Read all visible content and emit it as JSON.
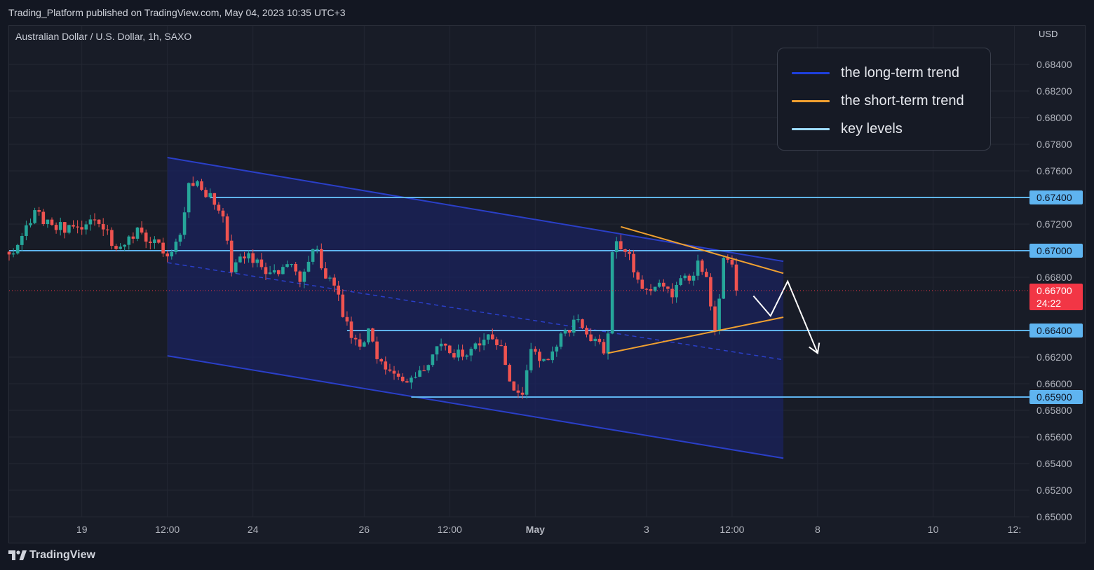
{
  "header": {
    "published": "Trading_Platform published on TradingView.com, May 04, 2023 10:35 UTC+3"
  },
  "symbol": "Australian Dollar / U.S. Dollar, 1h, SAXO",
  "currency": "USD",
  "footer": {
    "brand": "TradingView"
  },
  "legend": [
    {
      "label": "the long-term trend",
      "color": "#1e3fdc"
    },
    {
      "label": "the short-term trend",
      "color": "#f0a030"
    },
    {
      "label": "key levels",
      "color": "#9fdcff"
    }
  ],
  "colors": {
    "up": "#26a69a",
    "down": "#ef5350",
    "channel_line": "#2a3fc8",
    "channel_fill": "#1a2360",
    "short_trend": "#f0a030",
    "key_level": "#5fb4f0",
    "current_price": "#f23645"
  },
  "chart_data": {
    "type": "candlestick",
    "symbol": "Australian Dollar / U.S. Dollar",
    "interval": "1h",
    "exchange": "SAXO",
    "y_unit": "USD",
    "ylim": [
      0.65,
      0.685
    ],
    "y_ticks": [
      0.684,
      0.682,
      0.68,
      0.678,
      0.676,
      0.672,
      0.668,
      0.662,
      0.66,
      0.658,
      0.656,
      0.654,
      0.652,
      0.65
    ],
    "y_tick_labels": [
      "0.68400",
      "0.68200",
      "0.68000",
      "0.67800",
      "0.67600",
      "0.67200",
      "0.66800",
      "0.66200",
      "0.66000",
      "0.65800",
      "0.65600",
      "0.65400",
      "0.65200",
      "0.65000"
    ],
    "x_ticks": [
      {
        "label": "19",
        "bar": 17,
        "bold": false
      },
      {
        "label": "12:00",
        "bar": 37,
        "bold": false
      },
      {
        "label": "24",
        "bar": 57,
        "bold": false
      },
      {
        "label": "26",
        "bar": 83,
        "bold": false
      },
      {
        "label": "12:00",
        "bar": 103,
        "bold": false
      },
      {
        "label": "May",
        "bar": 123,
        "bold": true
      },
      {
        "label": "3",
        "bar": 149,
        "bold": false
      },
      {
        "label": "12:00",
        "bar": 169,
        "bold": false
      },
      {
        "label": "8",
        "bar": 189,
        "bold": false
      },
      {
        "label": "10",
        "bar": 216,
        "bold": false
      },
      {
        "label": "12:",
        "bar": 235,
        "bold": false
      }
    ],
    "candle_path": [
      [
        0,
        0.6696
      ],
      [
        6,
        0.6728
      ],
      [
        10,
        0.6721
      ],
      [
        15,
        0.6715
      ],
      [
        20,
        0.6723
      ],
      [
        25,
        0.6704
      ],
      [
        30,
        0.6716
      ],
      [
        35,
        0.6702
      ],
      [
        38,
        0.67
      ],
      [
        40,
        0.671
      ],
      [
        42,
        0.6755
      ],
      [
        45,
        0.6745
      ],
      [
        48,
        0.6738
      ],
      [
        50,
        0.6724
      ],
      [
        52,
        0.6688
      ],
      [
        55,
        0.6696
      ],
      [
        58,
        0.669
      ],
      [
        62,
        0.6682
      ],
      [
        66,
        0.6688
      ],
      [
        68,
        0.668
      ],
      [
        70,
        0.6694
      ],
      [
        72,
        0.6701
      ],
      [
        74,
        0.668
      ],
      [
        76,
        0.6672
      ],
      [
        78,
        0.6655
      ],
      [
        80,
        0.6635
      ],
      [
        82,
        0.6625
      ],
      [
        84,
        0.664
      ],
      [
        86,
        0.6618
      ],
      [
        88,
        0.6615
      ],
      [
        91,
        0.6602
      ],
      [
        93,
        0.6605
      ],
      [
        95,
        0.6602
      ],
      [
        98,
        0.6615
      ],
      [
        100,
        0.663
      ],
      [
        103,
        0.6628
      ],
      [
        106,
        0.6618
      ],
      [
        109,
        0.663
      ],
      [
        112,
        0.664
      ],
      [
        114,
        0.6632
      ],
      [
        116,
        0.6615
      ],
      [
        118,
        0.659
      ],
      [
        120,
        0.659
      ],
      [
        122,
        0.6622
      ],
      [
        125,
        0.662
      ],
      [
        127,
        0.6625
      ],
      [
        129,
        0.664
      ],
      [
        131,
        0.664
      ],
      [
        133,
        0.665
      ],
      [
        135,
        0.6636
      ],
      [
        137,
        0.663
      ],
      [
        139,
        0.6625
      ],
      [
        140,
        0.6635
      ],
      [
        141,
        0.67
      ],
      [
        142,
        0.6712
      ],
      [
        143,
        0.6704
      ],
      [
        145,
        0.6695
      ],
      [
        147,
        0.668
      ],
      [
        149,
        0.6672
      ],
      [
        152,
        0.6675
      ],
      [
        155,
        0.667
      ],
      [
        158,
        0.6678
      ],
      [
        161,
        0.6688
      ],
      [
        163,
        0.668
      ],
      [
        165,
        0.664
      ],
      [
        167,
        0.669
      ],
      [
        169,
        0.6692
      ],
      [
        170,
        0.667
      ]
    ],
    "current_price": 0.667,
    "countdown": "24:22",
    "key_levels": [
      {
        "value": 0.674,
        "label": "0.67400",
        "from_bar": 47,
        "to_bar": 240
      },
      {
        "value": 0.67,
        "label": "0.67000",
        "from_bar": 0,
        "to_bar": 240
      },
      {
        "value": 0.664,
        "label": "0.66400",
        "from_bar": 79,
        "to_bar": 240
      },
      {
        "value": 0.659,
        "label": "0.65900",
        "from_bar": 94,
        "to_bar": 240
      }
    ],
    "long_term_channel": {
      "upper": [
        [
          37,
          0.677
        ],
        [
          181,
          0.6692
        ]
      ],
      "middle": [
        [
          37,
          0.6691
        ],
        [
          181,
          0.6618
        ]
      ],
      "lower": [
        [
          37,
          0.6621
        ],
        [
          181,
          0.6544
        ]
      ]
    },
    "short_term_trend": {
      "upper": [
        [
          143,
          0.6718
        ],
        [
          181,
          0.6683
        ]
      ],
      "lower": [
        [
          140,
          0.6623
        ],
        [
          181,
          0.665
        ]
      ]
    },
    "projection": [
      [
        174,
        0.6666
      ],
      [
        178,
        0.6651
      ],
      [
        182,
        0.6677
      ],
      [
        189,
        0.6623
      ]
    ]
  }
}
